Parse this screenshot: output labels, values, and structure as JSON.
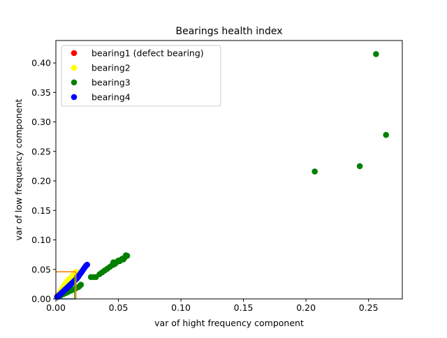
{
  "chart_data": {
    "type": "scatter",
    "title": "Bearings health index",
    "xlabel": "var of hight frequency component",
    "ylabel": "var of low frequency component",
    "xlim": [
      0,
      0.277
    ],
    "ylim": [
      0,
      0.438
    ],
    "xticks": [
      0.0,
      0.05,
      0.1,
      0.15,
      0.2,
      0.25
    ],
    "xtick_labels": [
      "0.00",
      "0.05",
      "0.10",
      "0.15",
      "0.20",
      "0.25"
    ],
    "yticks": [
      0.0,
      0.05,
      0.1,
      0.15,
      0.2,
      0.25,
      0.3,
      0.35,
      0.4
    ],
    "ytick_labels": [
      "0.00",
      "0.05",
      "0.10",
      "0.15",
      "0.20",
      "0.25",
      "0.30",
      "0.35",
      "0.40"
    ],
    "grid": false,
    "legend_position": "top-left",
    "series": [
      {
        "name": "bearing1 (defect bearing)",
        "color": "#ff0000",
        "x": [
          0.001,
          0.002,
          0.003,
          0.004,
          0.005,
          0.006
        ],
        "y": [
          0.004,
          0.006,
          0.008,
          0.01,
          0.012,
          0.014
        ]
      },
      {
        "name": "bearing2",
        "color": "#ffff00",
        "x": [
          0.002,
          0.004,
          0.005,
          0.006,
          0.007,
          0.008,
          0.009,
          0.01,
          0.011,
          0.012,
          0.013,
          0.014,
          0.015,
          0.016
        ],
        "y": [
          0.008,
          0.014,
          0.017,
          0.02,
          0.024,
          0.027,
          0.03,
          0.032,
          0.034,
          0.036,
          0.038,
          0.04,
          0.043,
          0.046
        ]
      },
      {
        "name": "bearing3",
        "color": "#008000",
        "x": [
          0.002,
          0.004,
          0.006,
          0.008,
          0.01,
          0.012,
          0.014,
          0.016,
          0.018,
          0.019,
          0.02,
          0.028,
          0.03,
          0.032,
          0.035,
          0.037,
          0.039,
          0.041,
          0.043,
          0.045,
          0.046,
          0.047,
          0.048,
          0.049,
          0.05,
          0.051,
          0.052,
          0.053,
          0.054,
          0.055,
          0.056,
          0.057,
          0.207,
          0.243,
          0.256,
          0.264
        ],
        "y": [
          0.004,
          0.006,
          0.008,
          0.01,
          0.012,
          0.014,
          0.016,
          0.018,
          0.02,
          0.022,
          0.024,
          0.037,
          0.037,
          0.037,
          0.042,
          0.045,
          0.048,
          0.051,
          0.054,
          0.057,
          0.062,
          0.059,
          0.061,
          0.063,
          0.065,
          0.064,
          0.066,
          0.068,
          0.067,
          0.07,
          0.074,
          0.073,
          0.216,
          0.225,
          0.415,
          0.278
        ]
      },
      {
        "name": "bearing4",
        "color": "#0000ff",
        "x": [
          0.001,
          0.002,
          0.003,
          0.004,
          0.005,
          0.006,
          0.007,
          0.008,
          0.009,
          0.01,
          0.011,
          0.012,
          0.013,
          0.014,
          0.015,
          0.016,
          0.017,
          0.018,
          0.019,
          0.02,
          0.021,
          0.022,
          0.023,
          0.024,
          0.025
        ],
        "y": [
          0.003,
          0.005,
          0.007,
          0.009,
          0.011,
          0.013,
          0.015,
          0.017,
          0.019,
          0.021,
          0.023,
          0.025,
          0.027,
          0.029,
          0.031,
          0.033,
          0.035,
          0.038,
          0.041,
          0.044,
          0.047,
          0.05,
          0.053,
          0.056,
          0.058
        ]
      }
    ],
    "lines": [
      {
        "color": "#ff7f0e",
        "x": [
          0.0,
          0.016
        ],
        "y": [
          0.046,
          0.046
        ]
      },
      {
        "color": "#ff7f0e",
        "x": [
          0.016,
          0.016
        ],
        "y": [
          0.0,
          0.046
        ]
      },
      {
        "color": "#2ca02c",
        "x": [
          0.015,
          0.015
        ],
        "y": [
          0.0,
          0.04
        ]
      },
      {
        "color": "#1f77b4",
        "x": [
          0.0,
          0.016
        ],
        "y": [
          0.0,
          0.0
        ]
      }
    ]
  }
}
